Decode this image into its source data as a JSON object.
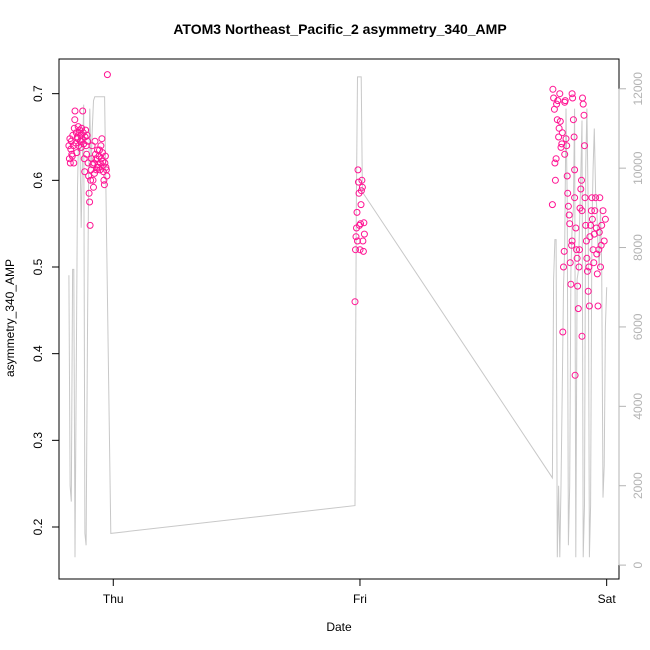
{
  "chart_data": {
    "type": "scatter",
    "title": "ATOM3 Northeast_Pacific_2 asymmetry_340_AMP",
    "xlabel": "Date",
    "ylabel": "asymmetry_340_AMP",
    "x_ticks": [
      {
        "label": "Thu",
        "day": 0
      },
      {
        "label": "Fri",
        "day": 1
      },
      {
        "label": "Sat",
        "day": 2
      }
    ],
    "xlim_days": [
      -0.22,
      2.05
    ],
    "y_ticks": [
      0.2,
      0.3,
      0.4,
      0.5,
      0.6,
      0.7
    ],
    "ylim": [
      0.14,
      0.74
    ],
    "y2_ticks": [
      0,
      2000,
      4000,
      6000,
      8000,
      10000,
      12000
    ],
    "y2lim": [
      -350,
      12750
    ],
    "grid": false,
    "colors": {
      "points": "#ff1493",
      "line": "#c8c8c8",
      "right_axis": "#b3b3b3",
      "frame": "#000000"
    },
    "series": [
      {
        "style": "points",
        "points": [
          [
            -0.18,
            0.64
          ],
          [
            -0.178,
            0.625
          ],
          [
            -0.176,
            0.648
          ],
          [
            -0.174,
            0.62
          ],
          [
            -0.172,
            0.636
          ],
          [
            -0.17,
            0.645
          ],
          [
            -0.168,
            0.63
          ],
          [
            -0.166,
            0.628
          ],
          [
            -0.164,
            0.652
          ],
          [
            -0.162,
            0.64
          ],
          [
            -0.16,
            0.62
          ],
          [
            -0.158,
            0.66
          ],
          [
            -0.156,
            0.67
          ],
          [
            -0.155,
            0.68
          ],
          [
            -0.152,
            0.643
          ],
          [
            -0.15,
            0.655
          ],
          [
            -0.148,
            0.632
          ],
          [
            -0.146,
            0.65
          ],
          [
            -0.144,
            0.648
          ],
          [
            -0.142,
            0.662
          ],
          [
            -0.14,
            0.64
          ],
          [
            -0.138,
            0.655
          ],
          [
            -0.136,
            0.658
          ],
          [
            -0.134,
            0.645
          ],
          [
            -0.132,
            0.652
          ],
          [
            -0.13,
            0.638
          ],
          [
            -0.128,
            0.66
          ],
          [
            -0.126,
            0.647
          ],
          [
            -0.124,
            0.68
          ],
          [
            -0.122,
            0.655
          ],
          [
            -0.12,
            0.642
          ],
          [
            -0.118,
            0.625
          ],
          [
            -0.116,
            0.61
          ],
          [
            -0.114,
            0.65
          ],
          [
            -0.112,
            0.658
          ],
          [
            -0.11,
            0.64
          ],
          [
            -0.108,
            0.63
          ],
          [
            -0.106,
            0.652
          ],
          [
            -0.104,
            0.645
          ],
          [
            -0.102,
            0.62
          ],
          [
            -0.1,
            0.605
          ],
          [
            -0.098,
            0.585
          ],
          [
            -0.096,
            0.575
          ],
          [
            -0.094,
            0.548
          ],
          [
            -0.092,
            0.6
          ],
          [
            -0.09,
            0.612
          ],
          [
            -0.088,
            0.625
          ],
          [
            -0.086,
            0.64
          ],
          [
            -0.084,
            0.618
          ],
          [
            -0.082,
            0.6
          ],
          [
            -0.08,
            0.592
          ],
          [
            -0.078,
            0.62
          ],
          [
            -0.076,
            0.608
          ],
          [
            -0.074,
            0.645
          ],
          [
            -0.072,
            0.63
          ],
          [
            -0.07,
            0.625
          ],
          [
            -0.068,
            0.612
          ],
          [
            -0.066,
            0.615
          ],
          [
            -0.064,
            0.635
          ],
          [
            -0.062,
            0.618
          ],
          [
            -0.06,
            0.615
          ],
          [
            -0.058,
            0.628
          ],
          [
            -0.056,
            0.635
          ],
          [
            -0.054,
            0.612
          ],
          [
            -0.052,
            0.62
          ],
          [
            -0.05,
            0.64
          ],
          [
            -0.048,
            0.625
          ],
          [
            -0.046,
            0.648
          ],
          [
            -0.044,
            0.632
          ],
          [
            -0.042,
            0.622
          ],
          [
            -0.04,
            0.61
          ],
          [
            -0.038,
            0.6
          ],
          [
            -0.036,
            0.595
          ],
          [
            -0.034,
            0.62
          ],
          [
            -0.032,
            0.628
          ],
          [
            -0.03,
            0.615
          ],
          [
            -0.028,
            0.612
          ],
          [
            -0.026,
            0.605
          ],
          [
            -0.024,
            0.722
          ],
          [
            0.98,
            0.46
          ],
          [
            0.982,
            0.52
          ],
          [
            0.984,
            0.535
          ],
          [
            0.986,
            0.545
          ],
          [
            0.988,
            0.563
          ],
          [
            0.99,
            0.53
          ],
          [
            0.992,
            0.612
          ],
          [
            0.994,
            0.598
          ],
          [
            0.996,
            0.585
          ],
          [
            0.998,
            0.548
          ],
          [
            1.0,
            0.52
          ],
          [
            1.002,
            0.55
          ],
          [
            1.004,
            0.572
          ],
          [
            1.006,
            0.588
          ],
          [
            1.008,
            0.6
          ],
          [
            1.01,
            0.592
          ],
          [
            1.012,
            0.53
          ],
          [
            1.014,
            0.518
          ],
          [
            1.016,
            0.551
          ],
          [
            1.018,
            0.538
          ],
          [
            1.78,
            0.572
          ],
          [
            1.782,
            0.705
          ],
          [
            1.785,
            0.695
          ],
          [
            1.788,
            0.682
          ],
          [
            1.79,
            0.62
          ],
          [
            1.792,
            0.6
          ],
          [
            1.795,
            0.625
          ],
          [
            1.797,
            0.688
          ],
          [
            1.8,
            0.67
          ],
          [
            1.802,
            0.692
          ],
          [
            1.805,
            0.65
          ],
          [
            1.807,
            0.66
          ],
          [
            1.81,
            0.7
          ],
          [
            1.812,
            0.668
          ],
          [
            1.815,
            0.638
          ],
          [
            1.818,
            0.642
          ],
          [
            1.82,
            0.655
          ],
          [
            1.822,
            0.425
          ],
          [
            1.825,
            0.5
          ],
          [
            1.828,
            0.518
          ],
          [
            1.83,
            0.63
          ],
          [
            1.832,
            0.692
          ],
          [
            1.835,
            0.648
          ],
          [
            1.838,
            0.64
          ],
          [
            1.84,
            0.605
          ],
          [
            1.842,
            0.585
          ],
          [
            1.845,
            0.57
          ],
          [
            1.848,
            0.56
          ],
          [
            1.85,
            0.55
          ],
          [
            1.852,
            0.505
          ],
          [
            1.855,
            0.48
          ],
          [
            1.858,
            0.525
          ],
          [
            1.86,
            0.53
          ],
          [
            1.862,
            0.695
          ],
          [
            1.865,
            0.67
          ],
          [
            1.868,
            0.65
          ],
          [
            1.87,
            0.58
          ],
          [
            1.872,
            0.375
          ],
          [
            1.875,
            0.545
          ],
          [
            1.878,
            0.52
          ],
          [
            1.88,
            0.51
          ],
          [
            1.882,
            0.478
          ],
          [
            1.885,
            0.452
          ],
          [
            1.888,
            0.5
          ],
          [
            1.89,
            0.52
          ],
          [
            1.892,
            0.568
          ],
          [
            1.895,
            0.59
          ],
          [
            1.898,
            0.6
          ],
          [
            1.9,
            0.565
          ],
          [
            1.902,
            0.695
          ],
          [
            1.905,
            0.688
          ],
          [
            1.908,
            0.675
          ],
          [
            1.91,
            0.64
          ],
          [
            1.912,
            0.58
          ],
          [
            1.915,
            0.548
          ],
          [
            1.918,
            0.53
          ],
          [
            1.92,
            0.51
          ],
          [
            1.922,
            0.495
          ],
          [
            1.925,
            0.472
          ],
          [
            1.928,
            0.5
          ],
          [
            1.93,
            0.455
          ],
          [
            1.932,
            0.535
          ],
          [
            1.935,
            0.548
          ],
          [
            1.938,
            0.565
          ],
          [
            1.94,
            0.58
          ],
          [
            1.942,
            0.555
          ],
          [
            1.945,
            0.52
          ],
          [
            1.948,
            0.505
          ],
          [
            1.95,
            0.538
          ],
          [
            1.952,
            0.565
          ],
          [
            1.955,
            0.58
          ],
          [
            1.958,
            0.545
          ],
          [
            1.96,
            0.515
          ],
          [
            1.962,
            0.492
          ],
          [
            1.965,
            0.455
          ],
          [
            1.968,
            0.52
          ],
          [
            1.97,
            0.54
          ],
          [
            1.972,
            0.58
          ],
          [
            1.975,
            0.5
          ],
          [
            1.978,
            0.525
          ],
          [
            1.98,
            0.548
          ],
          [
            1.985,
            0.565
          ],
          [
            1.99,
            0.53
          ],
          [
            1.995,
            0.555
          ],
          [
            1.9,
            0.42
          ],
          [
            1.83,
            0.69
          ],
          [
            1.86,
            0.7
          ],
          [
            1.87,
            0.612
          ]
        ]
      },
      {
        "style": "line",
        "axis": "right",
        "points": [
          [
            -0.18,
            7300
          ],
          [
            -0.175,
            2000
          ],
          [
            -0.17,
            1600
          ],
          [
            -0.165,
            7450
          ],
          [
            -0.16,
            7450
          ],
          [
            -0.155,
            200
          ],
          [
            -0.15,
            5000
          ],
          [
            -0.145,
            9500
          ],
          [
            -0.14,
            11000
          ],
          [
            -0.135,
            10500
          ],
          [
            -0.13,
            8500
          ],
          [
            -0.125,
            10200
          ],
          [
            -0.12,
            11600
          ],
          [
            -0.115,
            800
          ],
          [
            -0.11,
            500
          ],
          [
            -0.105,
            5500
          ],
          [
            -0.1,
            9800
          ],
          [
            -0.095,
            11500
          ],
          [
            -0.09,
            10000
          ],
          [
            -0.085,
            11000
          ],
          [
            -0.08,
            11700
          ],
          [
            -0.075,
            11800
          ],
          [
            -0.07,
            11800
          ],
          [
            -0.06,
            11800
          ],
          [
            -0.05,
            11800
          ],
          [
            -0.04,
            11800
          ],
          [
            -0.035,
            11800
          ],
          [
            -0.01,
            800
          ],
          [
            0.98,
            1500
          ],
          [
            0.985,
            9000
          ],
          [
            0.99,
            12300
          ],
          [
            0.995,
            12300
          ],
          [
            1.0,
            12300
          ],
          [
            1.005,
            12300
          ],
          [
            1.01,
            9400
          ],
          [
            1.78,
            2200
          ],
          [
            1.785,
            7200
          ],
          [
            1.79,
            8200
          ],
          [
            1.795,
            8200
          ],
          [
            1.8,
            200
          ],
          [
            1.805,
            2000
          ],
          [
            1.81,
            200
          ],
          [
            1.815,
            2000
          ],
          [
            1.82,
            4500
          ],
          [
            1.825,
            7000
          ],
          [
            1.83,
            8000
          ],
          [
            1.835,
            11500
          ],
          [
            1.84,
            9200
          ],
          [
            1.845,
            500
          ],
          [
            1.85,
            2000
          ],
          [
            1.855,
            7400
          ],
          [
            1.86,
            8500
          ],
          [
            1.865,
            9000
          ],
          [
            1.87,
            11500
          ],
          [
            1.875,
            200
          ],
          [
            1.88,
            7200
          ],
          [
            1.885,
            7400
          ],
          [
            1.89,
            8500
          ],
          [
            1.895,
            9800
          ],
          [
            1.9,
            11200
          ],
          [
            1.905,
            200
          ],
          [
            1.91,
            1500
          ],
          [
            1.915,
            10000
          ],
          [
            1.92,
            11500
          ],
          [
            1.925,
            9000
          ],
          [
            1.93,
            200
          ],
          [
            1.935,
            1500
          ],
          [
            1.94,
            8500
          ],
          [
            1.945,
            10000
          ],
          [
            1.95,
            11000
          ],
          [
            1.955,
            9400
          ],
          [
            1.96,
            9000
          ],
          [
            1.965,
            8000
          ],
          [
            1.97,
            7500
          ],
          [
            1.975,
            9000
          ],
          [
            1.98,
            7500
          ],
          [
            1.985,
            1700
          ],
          [
            1.99,
            2500
          ],
          [
            1.995,
            6000
          ],
          [
            2.0,
            7000
          ]
        ]
      }
    ]
  }
}
